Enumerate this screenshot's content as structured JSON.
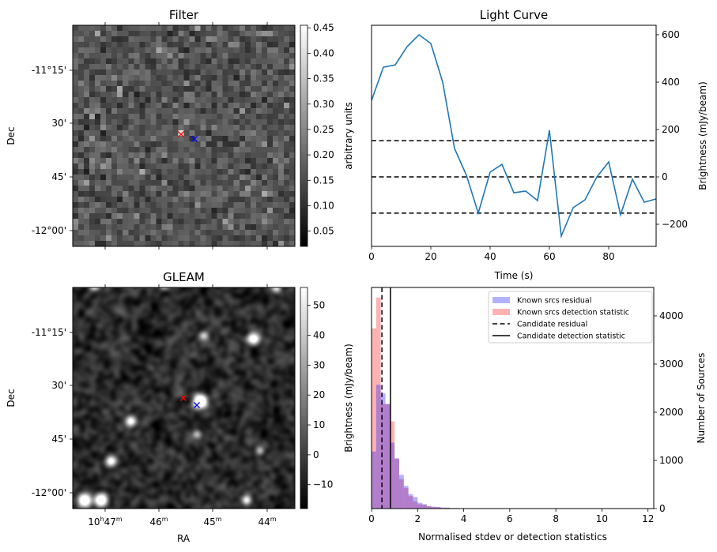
{
  "panels": {
    "filter": {
      "title": "Filter",
      "ylabel": "Dec",
      "yticks": [
        "-11°15'",
        "30'",
        "45'",
        "-12°00'"
      ],
      "colorbar": {
        "label": "arbitrary units",
        "ticks": [
          0.05,
          0.1,
          0.15,
          0.2,
          0.25,
          0.3,
          0.35,
          0.4,
          0.45
        ],
        "range": [
          0.02,
          0.455
        ]
      }
    },
    "gleam": {
      "title": "GLEAM",
      "ylabel": "Dec",
      "xlabel": "RA",
      "yticks": [
        "-11°15'",
        "30'",
        "45'",
        "-12°00'"
      ],
      "xticks": [
        {
          "h": "10",
          "m": "47"
        },
        {
          "m": "46"
        },
        {
          "m": "45"
        },
        {
          "m": "44"
        }
      ],
      "colorbar": {
        "label": "Brightness (mJy/beam)",
        "ticks": [
          -10,
          0,
          10,
          20,
          30,
          40,
          50
        ],
        "range": [
          -18,
          56
        ]
      }
    }
  },
  "markers": {
    "candidate_color": "#ff0000",
    "other_color": "#0000ff"
  },
  "chart_data": [
    {
      "type": "line",
      "title": "Light Curve",
      "xlabel": "Time (s)",
      "ylabel": "Brightness (mJy/beam)",
      "xlim": [
        0,
        96
      ],
      "ylim": [
        -250,
        640
      ],
      "xticks": [
        0,
        20,
        40,
        60,
        80
      ],
      "yticks": [
        -200,
        0,
        200,
        400,
        600
      ],
      "x": [
        0,
        4,
        8,
        12,
        16,
        20,
        24,
        28,
        32,
        36,
        40,
        44,
        48,
        52,
        56,
        60,
        64,
        68,
        72,
        76,
        80,
        84,
        88,
        92,
        96
      ],
      "values": [
        323,
        463,
        473,
        550,
        600,
        563,
        400,
        120,
        7,
        -153,
        20,
        53,
        -67,
        -60,
        -100,
        197,
        -250,
        -130,
        -97,
        0,
        63,
        -160,
        -10,
        -107,
        -93
      ],
      "color": "#1f77b4",
      "hlines": [
        153,
        0,
        -153
      ]
    },
    {
      "type": "bar",
      "xlabel": "Normalised stdev or detection statistics",
      "ylabel": "Number of Sources",
      "xlim": [
        0,
        12.25
      ],
      "ylim": [
        0,
        4590
      ],
      "xticks": [
        0,
        2,
        4,
        6,
        8,
        10,
        12
      ],
      "yticks": [
        0,
        1000,
        2000,
        3000,
        4000
      ],
      "bin_width": 0.2,
      "series": [
        {
          "name": "Known srcs residual",
          "color": "#0000ff",
          "values": [
            1185,
            2570,
            2390,
            2170,
            1370,
            1040,
            700,
            470,
            300,
            240,
            120,
            90,
            45,
            40,
            30,
            20,
            20,
            10,
            10,
            5,
            5,
            5,
            5,
            5,
            5,
            5,
            5,
            5,
            5,
            5,
            5,
            5,
            5,
            5,
            5,
            5,
            0,
            0,
            0,
            0,
            5
          ]
        },
        {
          "name": "Known srcs detection statistic",
          "color": "#ff0000",
          "values": [
            3740,
            4380,
            2170,
            2170,
            1810,
            1040,
            610,
            430,
            260,
            150,
            90,
            80,
            50,
            30,
            30,
            20,
            15,
            10,
            10,
            8,
            5,
            5,
            5,
            5,
            5,
            5,
            5,
            5,
            5,
            5,
            5,
            5,
            5,
            5,
            5,
            5,
            5,
            5,
            5,
            5,
            5,
            0,
            5,
            0,
            5,
            0,
            0,
            0,
            0,
            0,
            0,
            0,
            0,
            0,
            5,
            0,
            0,
            0,
            5
          ]
        }
      ],
      "vlines": [
        {
          "name": "Candidate residual",
          "x": 0.45,
          "style": "dashed"
        },
        {
          "name": "Candidate detection statistic",
          "x": 0.82,
          "style": "solid"
        }
      ],
      "legend_position": "top-right"
    }
  ]
}
